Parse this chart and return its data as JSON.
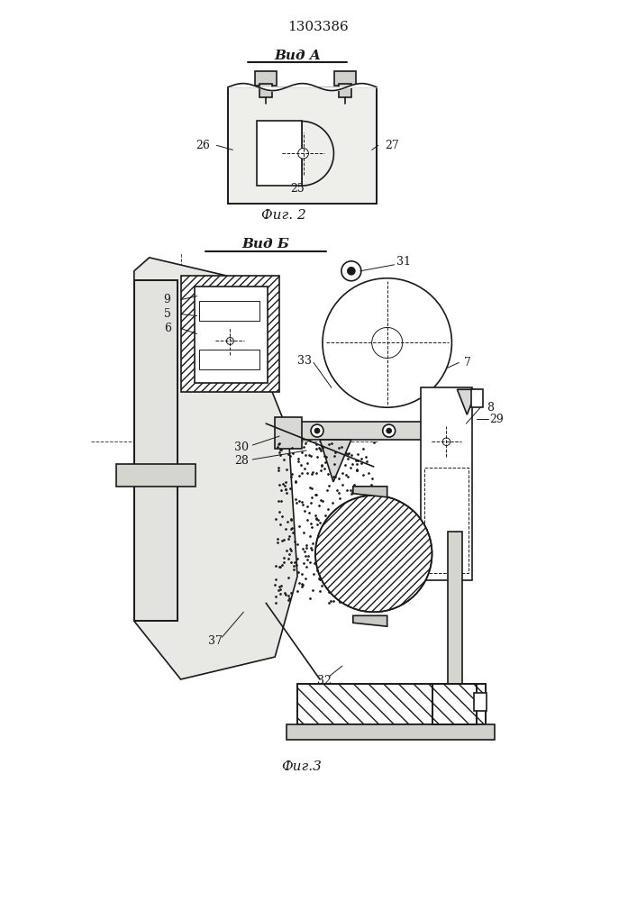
{
  "bg_color": "#ffffff",
  "line_color": "#1a1a1a",
  "patent_number": "1303386",
  "fig2_label": "Фиг. 2",
  "fig3_label": "Фиг.3",
  "vid_a_label": "Вид A",
  "vid_b_label": "Вид Б"
}
